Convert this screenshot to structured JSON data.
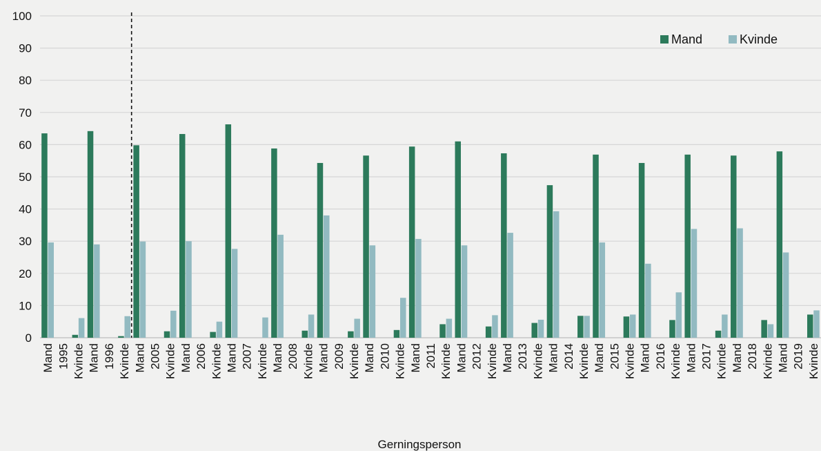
{
  "chart_data": {
    "type": "bar",
    "xlabel": "Gerningsperson",
    "ylabel": "",
    "ylim": [
      0,
      100
    ],
    "yticks": [
      0,
      10,
      20,
      30,
      40,
      50,
      60,
      70,
      80,
      90,
      100
    ],
    "grid": true,
    "legend_position": "top-right",
    "colors": {
      "Mand": "#2c7a5b",
      "Kvinde": "#92bac1"
    },
    "separator_after_group": 1,
    "groups": [
      {
        "year": "1995",
        "labels": [
          "Mand",
          "Kvinde"
        ],
        "values": {
          "Mand": [
            63.5,
            0.9
          ],
          "Kvinde": [
            29.6,
            6.1
          ]
        }
      },
      {
        "year": "1996",
        "labels": [
          "Mand",
          "Kvinde"
        ],
        "values": {
          "Mand": [
            64.2,
            0.5
          ],
          "Kvinde": [
            29.0,
            6.7
          ]
        }
      },
      {
        "year": "2005",
        "labels": [
          "Mand",
          "Kvinde"
        ],
        "values": {
          "Mand": [
            59.8,
            2.0
          ],
          "Kvinde": [
            29.9,
            8.4
          ]
        }
      },
      {
        "year": "2006",
        "labels": [
          "Mand",
          "Kvinde"
        ],
        "values": {
          "Mand": [
            63.3,
            1.8
          ],
          "Kvinde": [
            30.0,
            5.0
          ]
        }
      },
      {
        "year": "2007",
        "labels": [
          "Mand",
          "Kvinde"
        ],
        "values": {
          "Mand": [
            66.3,
            0
          ],
          "Kvinde": [
            27.6,
            6.3
          ]
        }
      },
      {
        "year": "2008",
        "labels": [
          "Mand",
          "Kvinde"
        ],
        "values": {
          "Mand": [
            58.8,
            2.2
          ],
          "Kvinde": [
            32.0,
            7.2
          ]
        }
      },
      {
        "year": "2009",
        "labels": [
          "Mand",
          "Kvinde"
        ],
        "values": {
          "Mand": [
            54.3,
            2.0
          ],
          "Kvinde": [
            38.0,
            5.9
          ]
        }
      },
      {
        "year": "2010",
        "labels": [
          "Mand",
          "Kvinde"
        ],
        "values": {
          "Mand": [
            56.6,
            2.4
          ],
          "Kvinde": [
            28.7,
            12.4
          ]
        }
      },
      {
        "year": "2011",
        "labels": [
          "Mand",
          "Kvinde"
        ],
        "values": {
          "Mand": [
            59.4,
            4.2
          ],
          "Kvinde": [
            30.7,
            5.9
          ]
        }
      },
      {
        "year": "2012",
        "labels": [
          "Mand",
          "Kvinde"
        ],
        "values": {
          "Mand": [
            61.0,
            3.5
          ],
          "Kvinde": [
            28.7,
            7.0
          ]
        }
      },
      {
        "year": "2013",
        "labels": [
          "Mand",
          "Kvinde"
        ],
        "values": {
          "Mand": [
            57.3,
            4.6
          ],
          "Kvinde": [
            32.6,
            5.6
          ]
        }
      },
      {
        "year": "2014",
        "labels": [
          "Mand",
          "Kvinde"
        ],
        "values": {
          "Mand": [
            47.4,
            6.8
          ],
          "Kvinde": [
            39.3,
            6.8
          ]
        }
      },
      {
        "year": "2015",
        "labels": [
          "Mand",
          "Kvinde"
        ],
        "values": {
          "Mand": [
            56.9,
            6.6
          ],
          "Kvinde": [
            29.6,
            7.2
          ]
        }
      },
      {
        "year": "2016",
        "labels": [
          "Mand",
          "Kvinde"
        ],
        "values": {
          "Mand": [
            54.3,
            5.5
          ],
          "Kvinde": [
            23.0,
            14.1
          ]
        }
      },
      {
        "year": "2017",
        "labels": [
          "Mand",
          "Kvinde"
        ],
        "values": {
          "Mand": [
            56.9,
            2.2
          ],
          "Kvinde": [
            33.8,
            7.2
          ]
        }
      },
      {
        "year": "2018",
        "labels": [
          "Mand",
          "Kvinde"
        ],
        "values": {
          "Mand": [
            56.6,
            5.5
          ],
          "Kvinde": [
            34.0,
            4.2
          ]
        }
      },
      {
        "year": "2019",
        "labels": [
          "Mand",
          "Kvinde"
        ],
        "values": {
          "Mand": [
            57.9,
            7.2
          ],
          "Kvinde": [
            26.5,
            8.5
          ]
        }
      }
    ],
    "series": [
      {
        "name": "Mand"
      },
      {
        "name": "Kvinde"
      }
    ]
  }
}
